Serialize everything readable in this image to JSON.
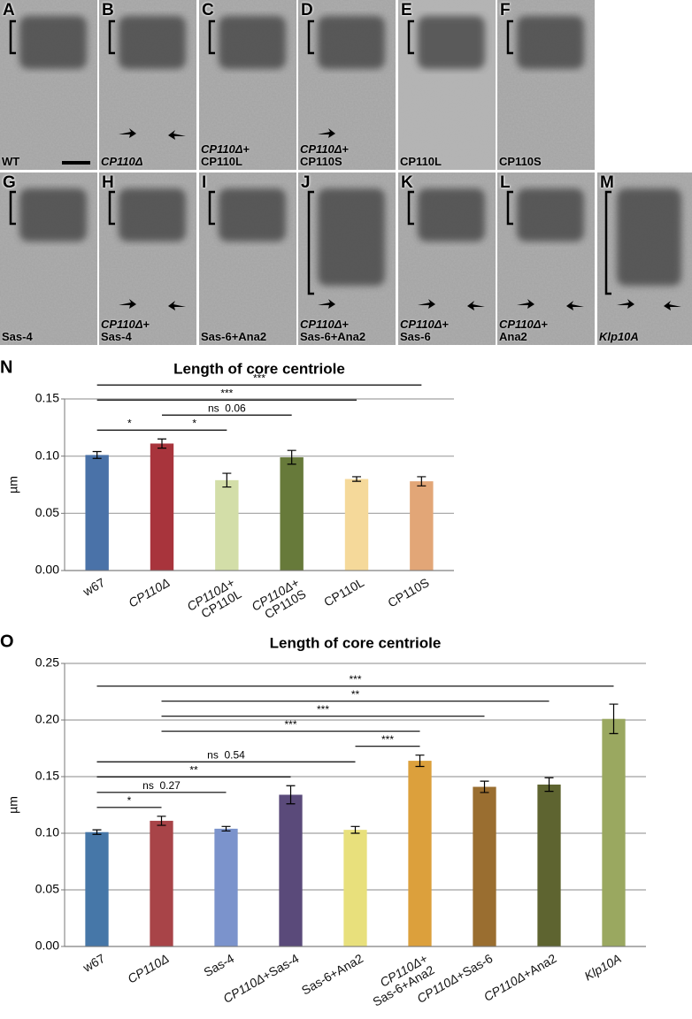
{
  "panels": [
    {
      "letter": "A",
      "caption": "WT"
    },
    {
      "letter": "B",
      "caption": "CP110Δ"
    },
    {
      "letter": "C",
      "caption": "CP110Δ+\nCP110L"
    },
    {
      "letter": "D",
      "caption": "CP110Δ+\nCP110S"
    },
    {
      "letter": "E",
      "caption": "CP110L"
    },
    {
      "letter": "F",
      "caption": "CP110S"
    },
    {
      "letter": "G",
      "caption": "Sas-4"
    },
    {
      "letter": "H",
      "caption": "CP110Δ+\nSas-4"
    },
    {
      "letter": "I",
      "caption": "Sas-6+Ana2"
    },
    {
      "letter": "J",
      "caption": "CP110Δ+\nSas-6+Ana2"
    },
    {
      "letter": "K",
      "caption": "CP110Δ+\nSas-6"
    },
    {
      "letter": "L",
      "caption": "CP110Δ+\nAna2"
    },
    {
      "letter": "M",
      "caption": "Klp10A"
    }
  ],
  "chart_data": [
    {
      "type": "bar",
      "panel": "N",
      "title": "Length of core centriole",
      "y_label": "µm",
      "categories": [
        "w67",
        "CP110Δ",
        "CP110Δ+\nCP110L",
        "CP110Δ+\nCP110S",
        "CP110L",
        "CP110S"
      ],
      "values": [
        0.101,
        0.111,
        0.079,
        0.099,
        0.08,
        0.078
      ],
      "errors": [
        0.003,
        0.004,
        0.006,
        0.006,
        0.002,
        0.004
      ],
      "colors": [
        "#4a72a8",
        "#a8343c",
        "#d3dea8",
        "#677a3a",
        "#f5d99a",
        "#e2a677"
      ],
      "ylim": [
        0,
        0.15
      ],
      "yticks": [
        {
          "value": 0,
          "label": "0.00"
        },
        0.05,
        {
          "value": 0.1,
          "label": "0.10"
        },
        0.15
      ],
      "grid": true,
      "significance": [
        {
          "from": "w67",
          "to": "CP110Δ",
          "label": "*"
        },
        {
          "from": "CP110Δ",
          "to": "CP110Δ+\nCP110L",
          "label": "*"
        },
        {
          "from": "CP110Δ",
          "to": "CP110Δ+\nCP110S",
          "label": "ns  0.06"
        },
        {
          "from": "w67",
          "to": "CP110L",
          "label": "***"
        },
        {
          "from": "w67",
          "to": "CP110S",
          "label": "***"
        }
      ]
    },
    {
      "type": "bar",
      "panel": "O",
      "title": "Length of core centriole",
      "y_label": "µm",
      "categories": [
        "w67",
        "CP110Δ",
        "Sas-4",
        "CP110Δ+Sas-4",
        "Sas-6+Ana2",
        "CP110Δ+\nSas-6+Ana2",
        "CP110Δ+Sas-6",
        "CP110Δ+Ana2",
        "Klp10A"
      ],
      "values": [
        0.101,
        0.111,
        0.104,
        0.134,
        0.103,
        0.164,
        0.141,
        0.143,
        0.201
      ],
      "errors": [
        0.002,
        0.004,
        0.002,
        0.008,
        0.003,
        0.005,
        0.005,
        0.006,
        0.013
      ],
      "colors": [
        "#4677a8",
        "#a84448",
        "#7b93cc",
        "#5a4a7a",
        "#e8e07c",
        "#dca03c",
        "#9a6e30",
        "#5e6430",
        "#9aa860"
      ],
      "ylim": [
        0,
        0.25
      ],
      "yticks": [
        {
          "value": 0,
          "label": "0.00"
        },
        0.05,
        {
          "value": 0.1,
          "label": "0.10"
        },
        0.15,
        {
          "value": 0.2,
          "label": "0.20"
        },
        0.25
      ],
      "grid": true,
      "significance": [
        {
          "from": "w67",
          "to": "CP110Δ",
          "label": "*"
        },
        {
          "from": "w67",
          "to": "Sas-4",
          "label": "ns  0.27"
        },
        {
          "from": "w67",
          "to": "CP110Δ+Sas-4",
          "label": "**"
        },
        {
          "from": "w67",
          "to": "Sas-6+Ana2",
          "label": "ns  0.54"
        },
        {
          "from": "Sas-6+Ana2",
          "to": "CP110Δ+\nSas-6+Ana2",
          "label": "***"
        },
        {
          "from": "CP110Δ",
          "to": "CP110Δ+\nSas-6+Ana2",
          "label": "***"
        },
        {
          "from": "CP110Δ",
          "to": "CP110Δ+Sas-6",
          "label": "***"
        },
        {
          "from": "CP110Δ",
          "to": "CP110Δ+Ana2",
          "label": "**"
        },
        {
          "from": "w67",
          "to": "Klp10A",
          "label": "***"
        }
      ]
    }
  ]
}
